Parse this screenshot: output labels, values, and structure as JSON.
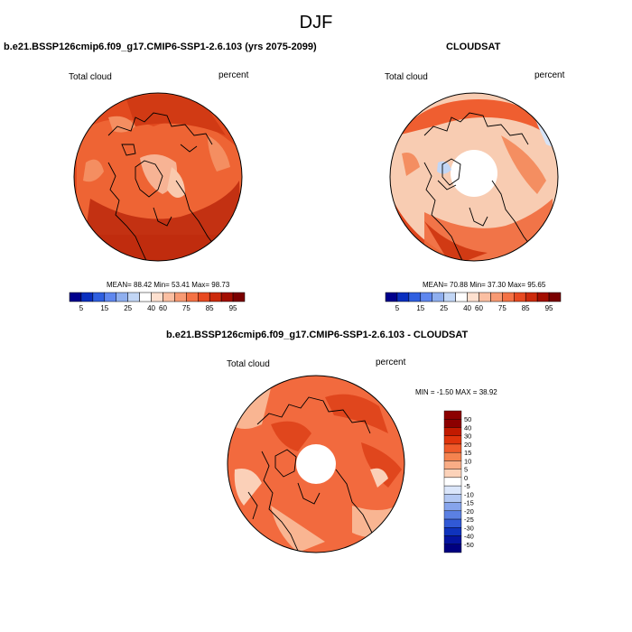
{
  "figure": {
    "title": "DJF"
  },
  "panels": [
    {
      "title": "b.e21.BSSP126cmip6.f09_g17.CMIP6-SSP1-2.6.103 (yrs 2075-2099)",
      "left_label": "Total cloud",
      "right_label": "percent",
      "stats": "MEAN=  88.42  Min=  53.41  Max=  98.73"
    },
    {
      "title": "CLOUDSAT",
      "left_label": "Total cloud",
      "right_label": "percent",
      "stats": "MEAN=  70.88  Min=  37.30  Max=  95.65"
    },
    {
      "title": "b.e21.BSSP126cmip6.f09_g17.CMIP6-SSP1-2.6.103 - CLOUDSAT",
      "left_label": "Total cloud",
      "right_label": "percent",
      "stats": "MIN =  -1.50 MAX =  38.92"
    }
  ],
  "colorbar_abs": {
    "colors": [
      "#00008c",
      "#0a2fbf",
      "#2f5fe0",
      "#5f87ef",
      "#8fafef",
      "#c2d6f5",
      "#ffffff",
      "#fde0cf",
      "#fbbfa2",
      "#f89a73",
      "#f47245",
      "#e84a21",
      "#cc2a0c",
      "#a30e00",
      "#7a0000"
    ],
    "labels": [
      "5",
      "15",
      "25",
      "40",
      "60",
      "75",
      "85",
      "95"
    ]
  },
  "colorbar_diff": {
    "colors": [
      "#8c0000",
      "#c21a00",
      "#e0340c",
      "#ef5a2a",
      "#f5834f",
      "#f9ad86",
      "#fcd2b9",
      "#ffffff",
      "#dbe6fa",
      "#b3c8f3",
      "#86a4ec",
      "#5b80e3",
      "#3159d6",
      "#0f33bd",
      "#0514a0",
      "#000080"
    ],
    "labels": [
      "50",
      "40",
      "30",
      "20",
      "15",
      "10",
      "5",
      "0",
      "-5",
      "-10",
      "-15",
      "-20",
      "-25",
      "-30",
      "-40",
      "-50"
    ]
  },
  "colors": {
    "map_fill_1": "#e0461d",
    "map_fill_2": "#f26a3e",
    "map_fill_3": "#f8d0b8",
    "coast": "#000000"
  }
}
